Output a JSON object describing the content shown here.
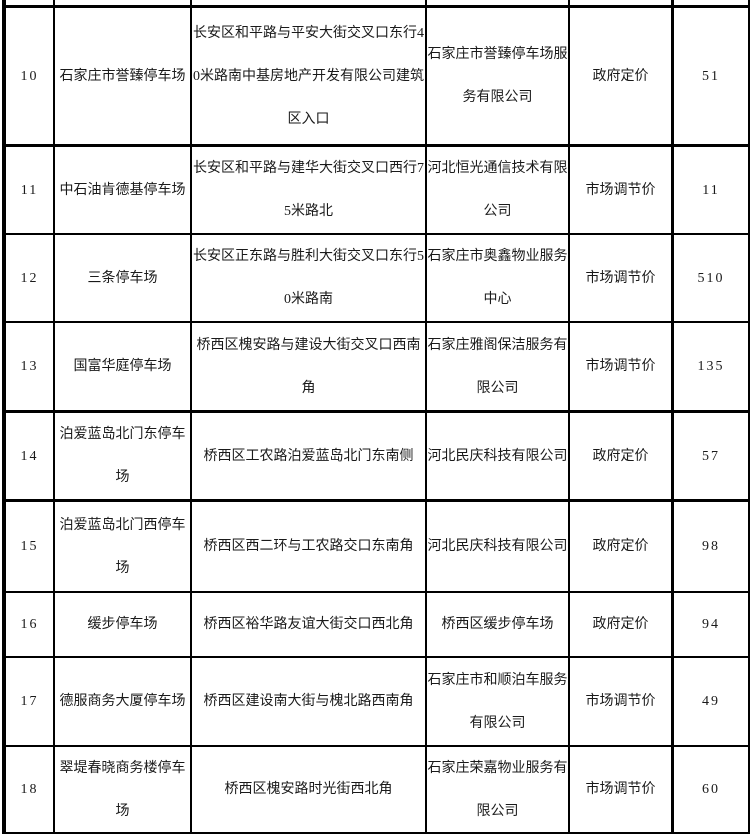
{
  "table": {
    "description": "停车场信息表",
    "rows": [
      {
        "seq": "10",
        "name": "石家庄市誉臻停车场",
        "address": "长安区和平路与平安大街交叉口东行40米路南中基房地产开发有限公司建筑区入口",
        "operator": "石家庄市誉臻停车场服务有限公司",
        "pricing": "政府定价",
        "spaces": "51"
      },
      {
        "seq": "11",
        "name": "中石油肯德基停车场",
        "address": "长安区和平路与建华大街交叉口西行75米路北",
        "operator": "河北恒光通信技术有限公司",
        "pricing": "市场调节价",
        "spaces": "11"
      },
      {
        "seq": "12",
        "name": "三条停车场",
        "address": "长安区正东路与胜利大街交叉口东行50米路南",
        "operator": "石家庄市奥鑫物业服务中心",
        "pricing": "市场调节价",
        "spaces": "510"
      },
      {
        "seq": "13",
        "name": "国富华庭停车场",
        "address": "桥西区槐安路与建设大街交叉口西南角",
        "operator": "石家庄雅阁保洁服务有限公司",
        "pricing": "市场调节价",
        "spaces": "135"
      },
      {
        "seq": "14",
        "name": "泊爱蓝岛北门东停车场",
        "address": "桥西区工农路泊爱蓝岛北门东南侧",
        "operator": "河北民庆科技有限公司",
        "pricing": "政府定价",
        "spaces": "57"
      },
      {
        "seq": "15",
        "name": "泊爱蓝岛北门西停车场",
        "address": "桥西区西二环与工农路交口东南角",
        "operator": "河北民庆科技有限公司",
        "pricing": "政府定价",
        "spaces": "98"
      },
      {
        "seq": "16",
        "name": "缓步停车场",
        "address": "桥西区裕华路友谊大街交口西北角",
        "operator": "桥西区缓步停车场",
        "pricing": "政府定价",
        "spaces": "94"
      },
      {
        "seq": "17",
        "name": "德服商务大厦停车场",
        "address": "桥西区建设南大街与槐北路西南角",
        "operator": "石家庄市和顺泊车服务有限公司",
        "pricing": "市场调节价",
        "spaces": "49"
      },
      {
        "seq": "18",
        "name": "翠堤春晓商务楼停车场",
        "address": "桥西区槐安路时光街西北角",
        "operator": "石家庄荣嘉物业服务有限公司",
        "pricing": "市场调节价",
        "spaces": "60"
      }
    ]
  },
  "colors": {
    "border": "#000000",
    "text": "#1a1a1a",
    "background": "#ffffff"
  }
}
